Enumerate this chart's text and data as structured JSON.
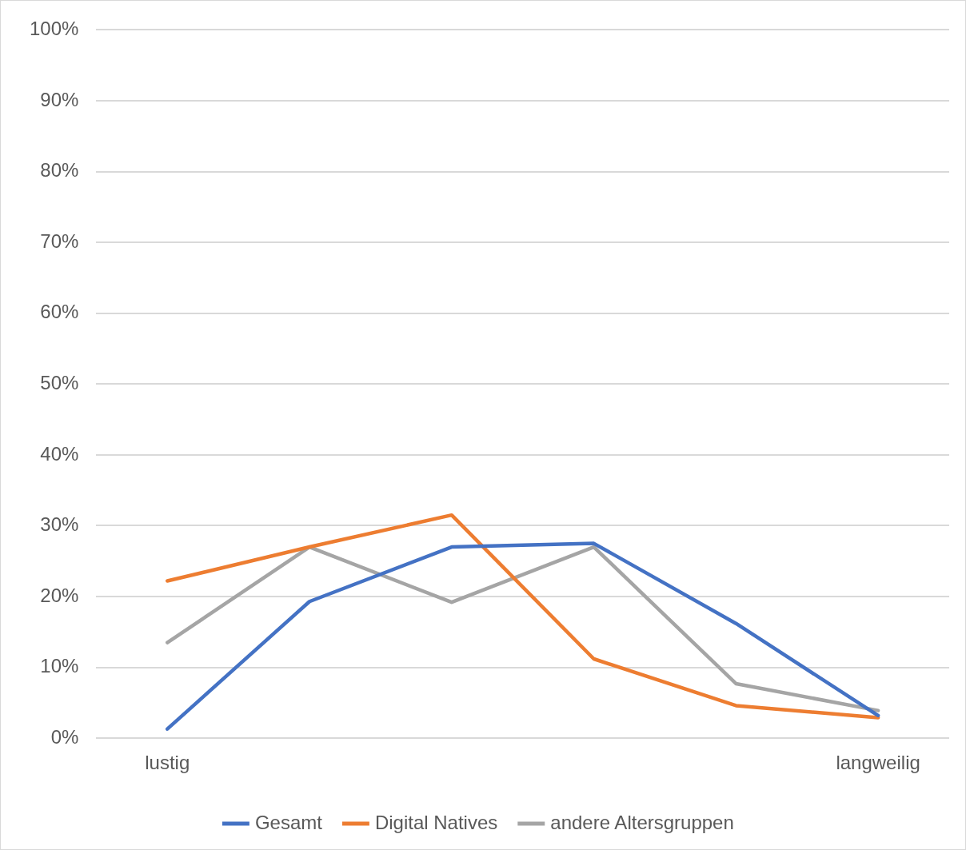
{
  "chart_data": {
    "type": "line",
    "categories": [
      "lustig",
      null,
      null,
      null,
      null,
      "langweilig"
    ],
    "series": [
      {
        "name": "Gesamt",
        "color": "#4472c4",
        "values": [
          1.3,
          19.3,
          27.0,
          27.5,
          16.2,
          3.2
        ]
      },
      {
        "name": "Digital Natives",
        "color": "#ed7d31",
        "values": [
          22.2,
          27.0,
          31.5,
          11.2,
          4.6,
          2.9
        ]
      },
      {
        "name": "andere Altersgruppen",
        "color": "#a5a5a5",
        "values": [
          13.5,
          27.0,
          19.2,
          27.0,
          7.7,
          3.9
        ]
      }
    ],
    "ylim": [
      0,
      100
    ],
    "yticks": [
      {
        "value": 0,
        "label": "0%"
      },
      {
        "value": 10,
        "label": "10%"
      },
      {
        "value": 20,
        "label": "20%"
      },
      {
        "value": 30,
        "label": "30%"
      },
      {
        "value": 40,
        "label": "40%"
      },
      {
        "value": 50,
        "label": "50%"
      },
      {
        "value": 60,
        "label": "60%"
      },
      {
        "value": 70,
        "label": "70%"
      },
      {
        "value": 80,
        "label": "80%"
      },
      {
        "value": 90,
        "label": "90%"
      },
      {
        "value": 100,
        "label": "100%"
      }
    ],
    "grid": "y",
    "legend": "bottom",
    "marker": "none",
    "line_style": "solid"
  }
}
